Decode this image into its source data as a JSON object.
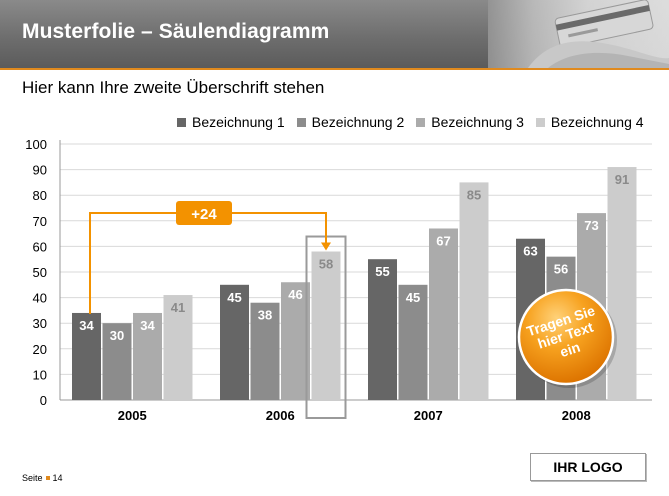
{
  "header": {
    "title": "Musterfolie – Säulendiagramm"
  },
  "subtitle": "Hier kann Ihre zweite Überschrift stehen",
  "footer": {
    "page_label": "Seite",
    "page_number": "14",
    "logo": "IHR LOGO"
  },
  "callout": {
    "label": "+24"
  },
  "badge": {
    "line1": "Tragen Sie",
    "line2": "hier Text",
    "line3": "ein"
  },
  "colors": {
    "accent": "#f39200",
    "series": [
      "#666666",
      "#8c8c8c",
      "#ababab",
      "#cccccc"
    ]
  },
  "chart_data": {
    "type": "bar",
    "categories": [
      "2005",
      "2006",
      "2007",
      "2008"
    ],
    "series": [
      {
        "name": "Bezeichnung 1",
        "values": [
          34,
          45,
          55,
          63
        ]
      },
      {
        "name": "Bezeichnung 2",
        "values": [
          30,
          38,
          45,
          56
        ]
      },
      {
        "name": "Bezeichnung 3",
        "values": [
          34,
          46,
          67,
          73
        ]
      },
      {
        "name": "Bezeichnung 4",
        "values": [
          41,
          58,
          85,
          91
        ]
      }
    ],
    "yticks": [
      "0",
      "10",
      "20",
      "30",
      "40",
      "50",
      "60",
      "70",
      "80",
      "90",
      "100"
    ],
    "ylim": [
      0,
      100
    ],
    "grid": true,
    "legend": "top-right"
  }
}
